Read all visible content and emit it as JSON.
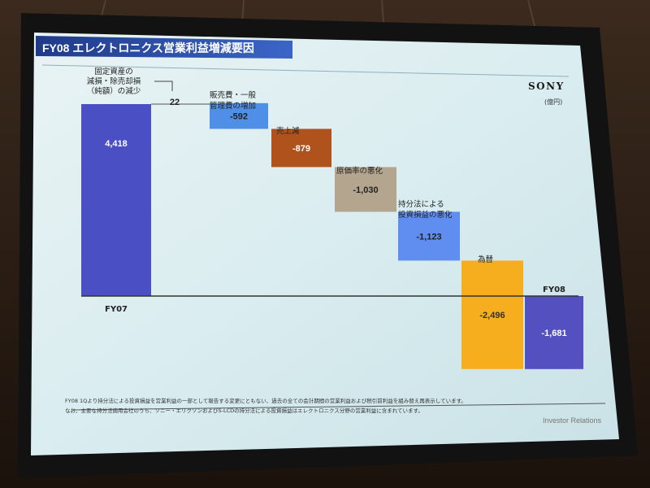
{
  "slide": {
    "title": "FY08 エレクトロニクス営業利益増減要因",
    "brand": "SONY",
    "unit": "(億円)",
    "footnote_1": "FY08 1Qより持分法による投資損益を営業利益の一部として報告する変更にともない、過去の全ての会計期間の営業利益および税引前利益を組み替え再表示しています。",
    "footnote_2": "なお、主要な持分法適用会社のうち、ソニー・エリクソンおよびS-LCDの持分法による投資損益はエレクトロニクス分野の営業利益に含まれています。",
    "footer_label": "Investor Relations"
  },
  "chart_data": {
    "type": "bar",
    "subtype": "waterfall",
    "title": "FY08 エレクトロニクス営業利益増減要因",
    "unit": "(億円)",
    "categories": [
      "FY07",
      "固定資産の減損・除売却損（純額）の減少",
      "販売費・一般管理費の増加",
      "売上減",
      "原価率の悪化",
      "持分法による投資損益の悪化",
      "為替",
      "FY08"
    ],
    "category_labels": {
      "fy07": "FY07",
      "fixed_line1": "固定資産の",
      "fixed_line2": "減損・除売却損",
      "fixed_line3": "（純額）の減少",
      "sga_line1": "販売費・一般",
      "sga_line2": "管理費の増加",
      "sales": "売上減",
      "cost_rate": "原価率の悪化",
      "equity_line1": "持分法による",
      "equity_line2": "投資損益の悪化",
      "fx": "為替",
      "fy08": "FY08"
    },
    "values": [
      4418,
      22,
      -592,
      -879,
      -1030,
      -1123,
      -2496,
      -1681
    ],
    "value_labels": [
      "4,418",
      "22",
      "-592",
      "-879",
      "-1,030",
      "-1,123",
      "-2,496",
      "-1,681"
    ],
    "bar_kinds": [
      "total",
      "delta",
      "delta",
      "delta",
      "delta",
      "delta",
      "delta",
      "total"
    ],
    "colors": {
      "fy07": "#4a4fc4",
      "sga": "#4f8fe8",
      "sales": "#b0521c",
      "cost_rate": "#b4a68e",
      "equity": "#5f8ef0",
      "fx": "#f6ad1e",
      "fy08": "#5450c0",
      "baseline": "#333333"
    },
    "legend": "none",
    "grid": false
  }
}
